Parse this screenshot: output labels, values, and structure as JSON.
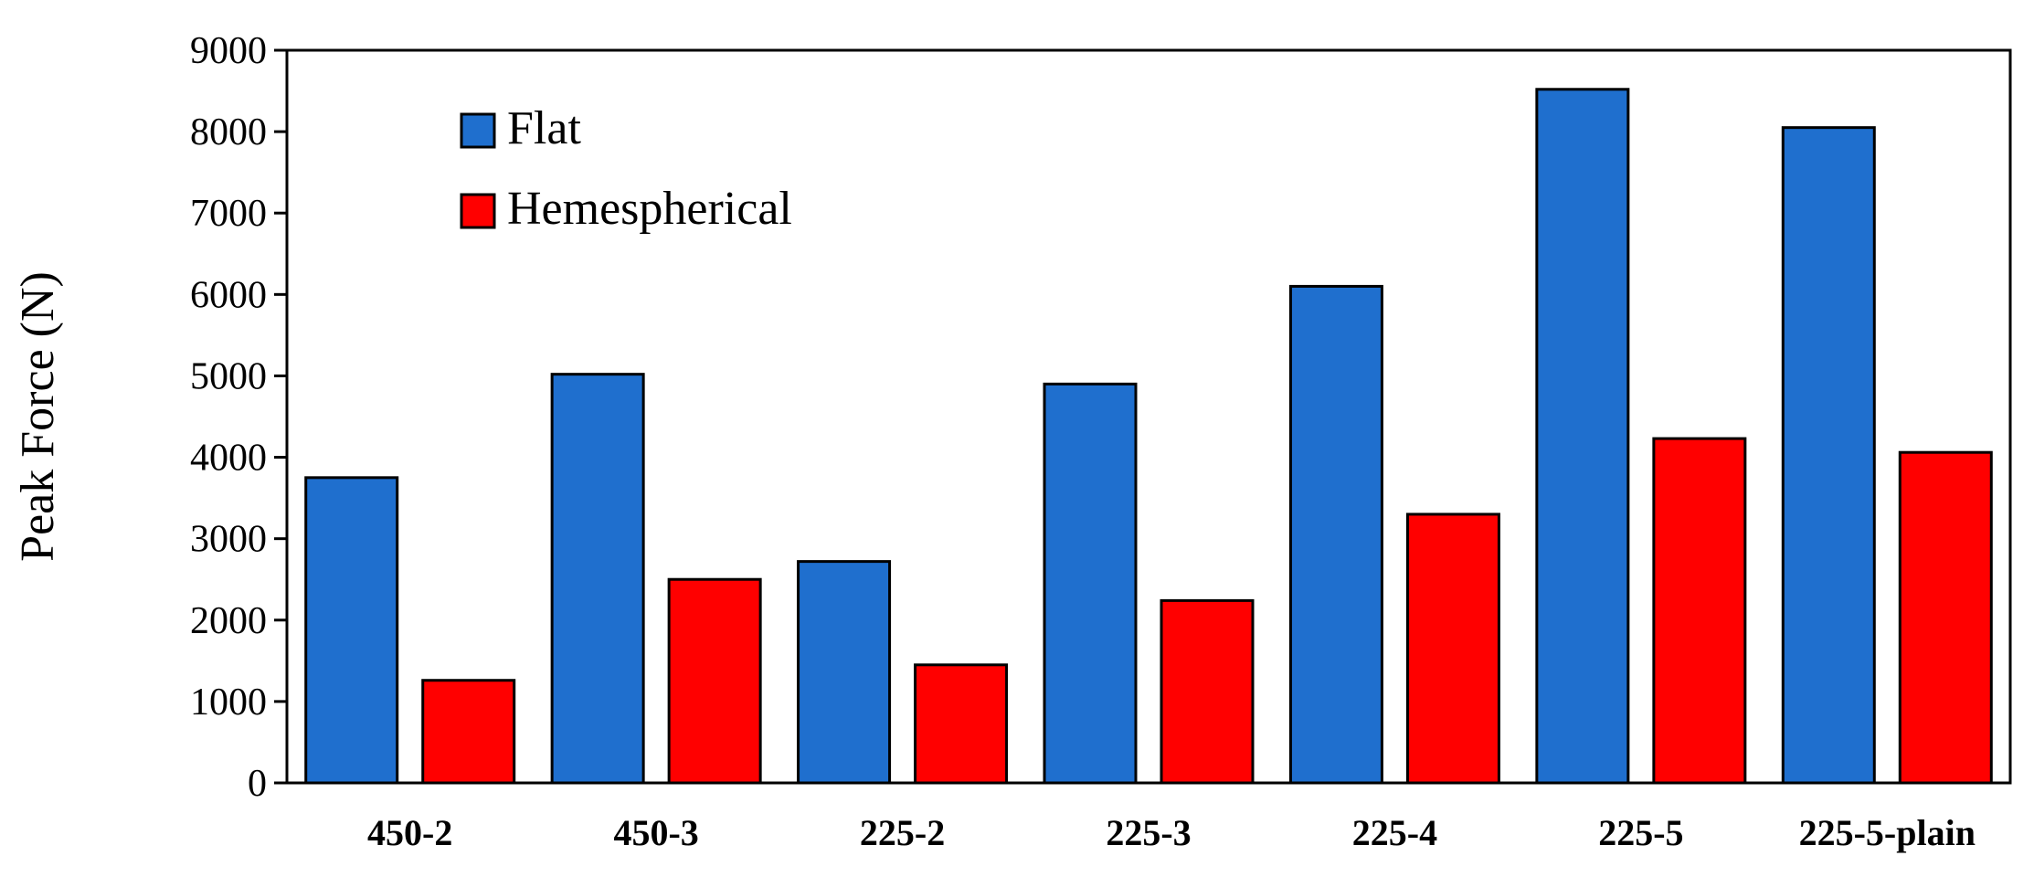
{
  "chart_data": {
    "type": "bar",
    "title": "",
    "xlabel": "",
    "ylabel": "Peak Force (N)",
    "ylim": [
      0,
      9000
    ],
    "yticks": [
      0,
      1000,
      2000,
      3000,
      4000,
      5000,
      6000,
      7000,
      8000,
      9000
    ],
    "categories": [
      "450-2",
      "450-3",
      "225-2",
      "225-3",
      "225-4",
      "225-5",
      "225-5-plain"
    ],
    "series": [
      {
        "name": "Flat",
        "color": "#1f6fce",
        "values": [
          3750,
          5020,
          2720,
          4900,
          6100,
          8520,
          8050
        ]
      },
      {
        "name": "Hemespherical",
        "color": "#ff0000",
        "values": [
          1260,
          2500,
          1450,
          2240,
          3300,
          4230,
          4060
        ]
      }
    ],
    "grid": false,
    "legend_position": "top-left"
  }
}
